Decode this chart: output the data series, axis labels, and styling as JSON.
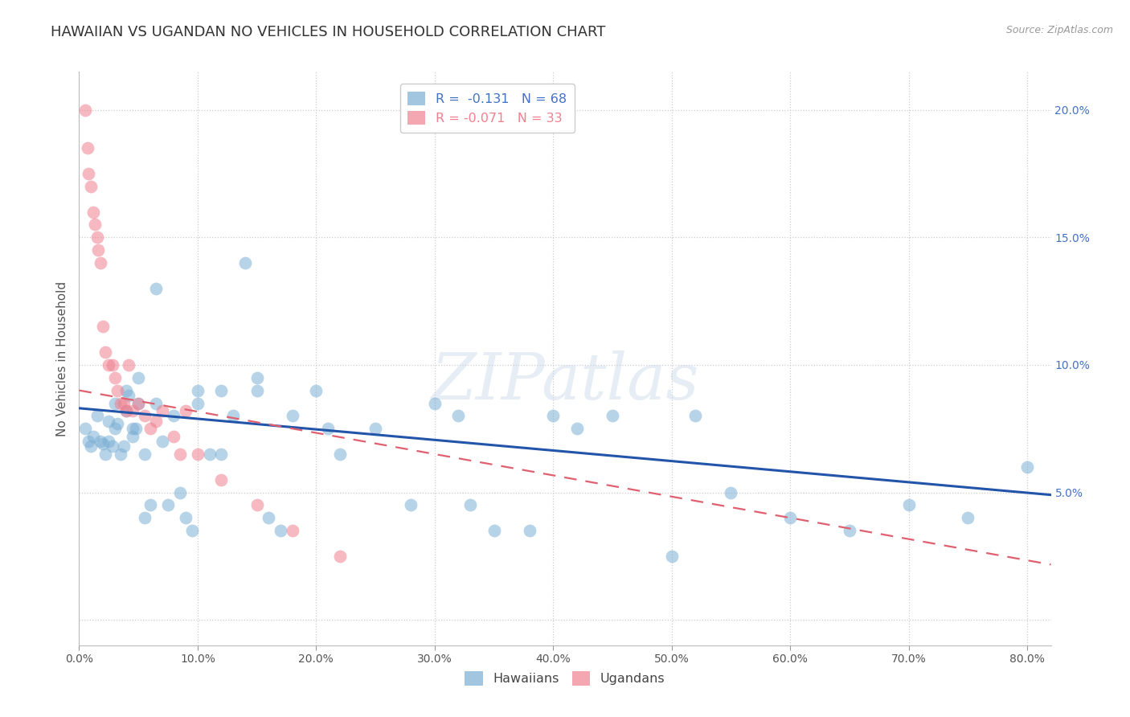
{
  "title": "HAWAIIAN VS UGANDAN NO VEHICLES IN HOUSEHOLD CORRELATION CHART",
  "source": "Source: ZipAtlas.com",
  "ylabel": "No Vehicles in Household",
  "xlim": [
    0.0,
    0.82
  ],
  "ylim": [
    -0.01,
    0.215
  ],
  "watermark": "ZIPatlas",
  "legend_entries": [
    {
      "label": "R =  -0.131   N = 68",
      "color": "#a8c4e0"
    },
    {
      "label": "R = -0.071   N = 33",
      "color": "#f4a0b0"
    }
  ],
  "hawaiians_color": "#7bafd4",
  "ugandans_color": "#f08090",
  "hawaiians_x": [
    0.005,
    0.008,
    0.01,
    0.012,
    0.015,
    0.018,
    0.02,
    0.022,
    0.025,
    0.025,
    0.028,
    0.03,
    0.03,
    0.032,
    0.035,
    0.038,
    0.04,
    0.04,
    0.042,
    0.045,
    0.045,
    0.048,
    0.05,
    0.05,
    0.055,
    0.055,
    0.06,
    0.065,
    0.065,
    0.07,
    0.075,
    0.08,
    0.085,
    0.09,
    0.095,
    0.1,
    0.1,
    0.11,
    0.12,
    0.12,
    0.13,
    0.14,
    0.15,
    0.15,
    0.16,
    0.17,
    0.18,
    0.2,
    0.21,
    0.22,
    0.25,
    0.28,
    0.3,
    0.32,
    0.33,
    0.35,
    0.38,
    0.4,
    0.42,
    0.45,
    0.5,
    0.52,
    0.55,
    0.6,
    0.65,
    0.7,
    0.75,
    0.8
  ],
  "hawaiians_y": [
    0.075,
    0.07,
    0.068,
    0.072,
    0.08,
    0.07,
    0.069,
    0.065,
    0.078,
    0.07,
    0.068,
    0.085,
    0.075,
    0.077,
    0.065,
    0.068,
    0.09,
    0.082,
    0.088,
    0.072,
    0.075,
    0.075,
    0.095,
    0.085,
    0.04,
    0.065,
    0.045,
    0.085,
    0.13,
    0.07,
    0.045,
    0.08,
    0.05,
    0.04,
    0.035,
    0.09,
    0.085,
    0.065,
    0.09,
    0.065,
    0.08,
    0.14,
    0.095,
    0.09,
    0.04,
    0.035,
    0.08,
    0.09,
    0.075,
    0.065,
    0.075,
    0.045,
    0.085,
    0.08,
    0.045,
    0.035,
    0.035,
    0.08,
    0.075,
    0.08,
    0.025,
    0.08,
    0.05,
    0.04,
    0.035,
    0.045,
    0.04,
    0.06
  ],
  "ugandans_x": [
    0.005,
    0.007,
    0.008,
    0.01,
    0.012,
    0.013,
    0.015,
    0.016,
    0.018,
    0.02,
    0.022,
    0.025,
    0.028,
    0.03,
    0.032,
    0.035,
    0.038,
    0.04,
    0.042,
    0.045,
    0.05,
    0.055,
    0.06,
    0.065,
    0.07,
    0.08,
    0.085,
    0.09,
    0.1,
    0.12,
    0.15,
    0.18,
    0.22
  ],
  "ugandans_y": [
    0.2,
    0.185,
    0.175,
    0.17,
    0.16,
    0.155,
    0.15,
    0.145,
    0.14,
    0.115,
    0.105,
    0.1,
    0.1,
    0.095,
    0.09,
    0.085,
    0.085,
    0.082,
    0.1,
    0.082,
    0.085,
    0.08,
    0.075,
    0.078,
    0.082,
    0.072,
    0.065,
    0.082,
    0.065,
    0.055,
    0.045,
    0.035,
    0.025
  ],
  "hawaiians_trend_x": [
    0.0,
    0.82
  ],
  "hawaiians_trend_y": [
    0.083,
    0.049
  ],
  "ugandans_trend_x": [
    0.0,
    0.3
  ],
  "ugandans_trend_y": [
    0.09,
    0.065
  ],
  "background_color": "#ffffff",
  "grid_color": "#cccccc",
  "title_fontsize": 13,
  "label_fontsize": 11,
  "tick_fontsize": 10,
  "right_tick_color": "#4472c4",
  "ugandan_trend_color": "#e06070"
}
